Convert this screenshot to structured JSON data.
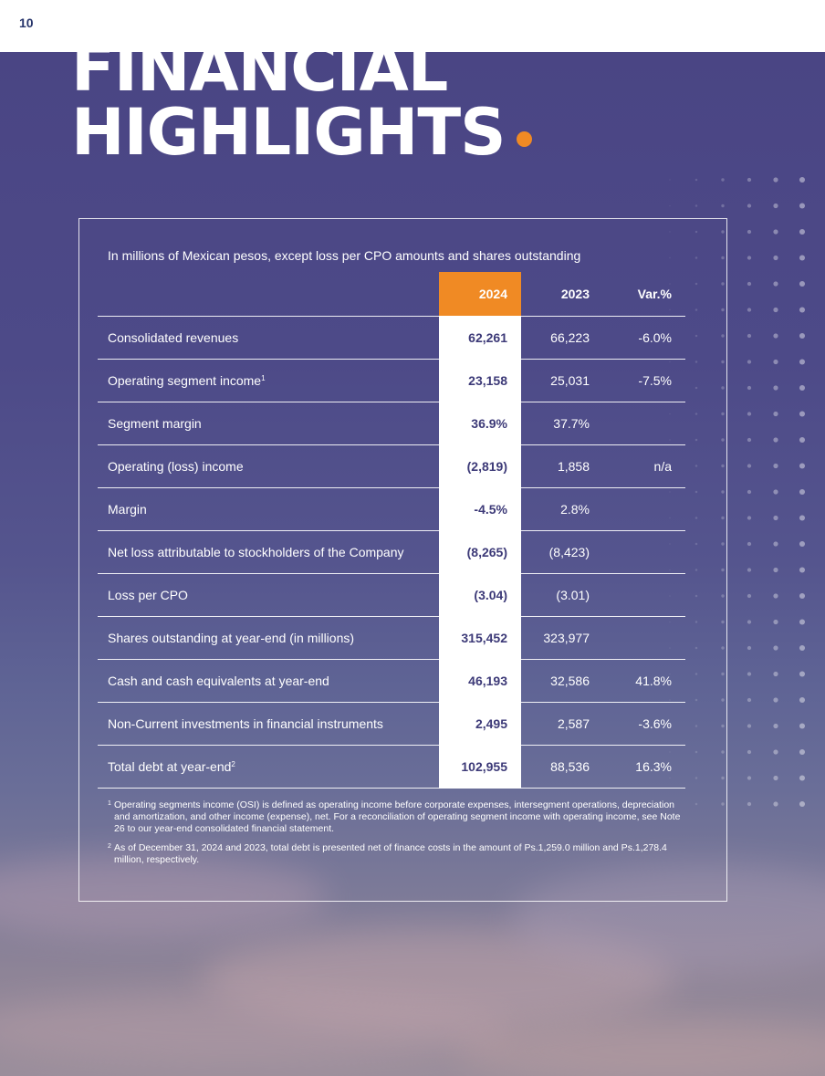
{
  "page": {
    "number": "10"
  },
  "title": {
    "line1": "FINANCIAL",
    "line2": "HIGHLIGHTS"
  },
  "colors": {
    "accent": "#f08a24",
    "navy": "#3d3a78",
    "background": "#4d4a88"
  },
  "panel": {
    "note": "In millions of Mexican pesos, except loss per CPO amounts and shares outstanding",
    "headers": {
      "label": "",
      "y2024": "2024",
      "y2023": "2023",
      "var": "Var.%"
    },
    "rows": [
      {
        "label": "Consolidated revenues",
        "sup": "",
        "y2024": "62,261",
        "y2023": "66,223",
        "var": "-6.0%"
      },
      {
        "label": "Operating segment income",
        "sup": "1",
        "y2024": "23,158",
        "y2023": "25,031",
        "var": "-7.5%"
      },
      {
        "label": "Segment margin",
        "sup": "",
        "y2024": "36.9%",
        "y2023": "37.7%",
        "var": ""
      },
      {
        "label": "Operating (loss) income",
        "sup": "",
        "y2024": "(2,819)",
        "y2023": "1,858",
        "var": "n/a"
      },
      {
        "label": "Margin",
        "sup": "",
        "y2024": "-4.5%",
        "y2023": "2.8%",
        "var": ""
      },
      {
        "label": "Net loss attributable to stockholders of the Company",
        "sup": "",
        "y2024": "(8,265)",
        "y2023": "(8,423)",
        "var": ""
      },
      {
        "label": "Loss per CPO",
        "sup": "",
        "y2024": "(3.04)",
        "y2023": "(3.01)",
        "var": ""
      },
      {
        "label": "Shares outstanding at year-end (in millions)",
        "sup": "",
        "y2024": "315,452",
        "y2023": "323,977",
        "var": ""
      },
      {
        "label": "Cash and cash equivalents at year-end",
        "sup": "",
        "y2024": "46,193",
        "y2023": "32,586",
        "var": "41.8%"
      },
      {
        "label": "Non-Current investments in financial instruments",
        "sup": "",
        "y2024": "2,495",
        "y2023": "2,587",
        "var": "-3.6%"
      },
      {
        "label": "Total debt at year-end",
        "sup": "2",
        "y2024": "102,955",
        "y2023": "88,536",
        "var": "16.3%"
      }
    ],
    "footnotes": [
      {
        "mark": "1",
        "text": "Operating segments income (OSI) is defined as operating income before corporate expenses, intersegment operations, depreciation and amortization, and other income (expense), net. For a reconciliation of operating segment income with operating income, see Note 26 to our year-end consolidated financial statement."
      },
      {
        "mark": "2",
        "text": "As of December 31, 2024 and 2023, total debt is presented net of finance costs in the amount of Ps.1,259.0 million and Ps.1,278.4 million, respectively."
      }
    ]
  }
}
